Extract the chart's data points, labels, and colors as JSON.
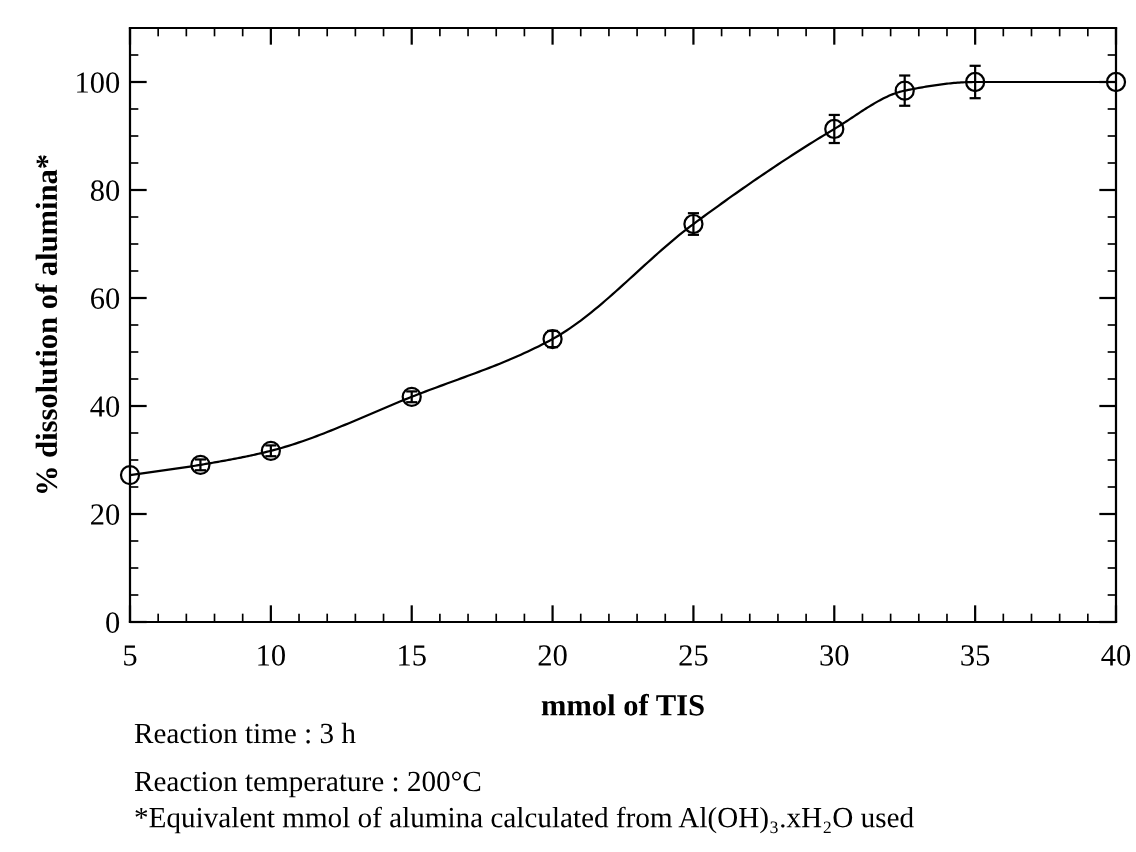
{
  "chart_data": {
    "type": "line",
    "xlabel": "mmol of TIS",
    "ylabel": "% dissolution of alumina*",
    "x": [
      5,
      7.5,
      10,
      15,
      20,
      25,
      30,
      32.5,
      35,
      40
    ],
    "series": [
      {
        "color": "#000000",
        "values": [
          27.2,
          29.1,
          31.7,
          41.7,
          52.4,
          73.7,
          91.3,
          98.4,
          100,
          100
        ],
        "errors": [
          null,
          1,
          1,
          1,
          1.5,
          2,
          2.6,
          2.8,
          3,
          null
        ]
      }
    ],
    "marker": "circle",
    "line_style": "solid",
    "grid": false,
    "legend": false,
    "xlim": [
      5,
      40
    ],
    "xticks": [
      5,
      10,
      15,
      20,
      25,
      30,
      35,
      40
    ],
    "ylim": [
      0,
      110
    ],
    "yticks": [
      0,
      20,
      40,
      60,
      80,
      100
    ],
    "annotations": [
      "Reaction time : 3 h",
      "Reaction temperature : 200°C",
      "*Equivalent mmol of alumina calculated from Al(OH)₃.xH₂O used"
    ]
  }
}
